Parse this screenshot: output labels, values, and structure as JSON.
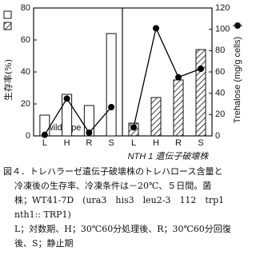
{
  "chart_data": [
    {
      "type": "bar",
      "title": "wild type",
      "ylabel": "生存率(%)",
      "categories": [
        "L",
        "H",
        "R",
        "S"
      ],
      "ylim": [
        0,
        80
      ],
      "yticks": [
        0,
        20,
        40,
        60,
        80
      ],
      "series": [
        {
          "type": "bar",
          "color": "#ffffff",
          "hatch": false,
          "values": [
            13,
            26,
            19,
            64
          ]
        },
        {
          "type": "line",
          "axis": "y2",
          "color": "#000000",
          "values": [
            1,
            35,
            3,
            27
          ]
        }
      ]
    },
    {
      "type": "bar",
      "title": "NTH 1 遺伝子破壊株",
      "y2label": "Trehalose (mg/g cells)",
      "categories": [
        "L",
        "H",
        "R",
        "S"
      ],
      "y2lim": [
        0,
        120
      ],
      "y2ticks": [
        0,
        20,
        40,
        60,
        80,
        100,
        120
      ],
      "series": [
        {
          "type": "bar",
          "color": "#ffffff",
          "hatch": true,
          "values": [
            8,
            24,
            35,
            54
          ]
        },
        {
          "type": "line",
          "axis": "y2",
          "color": "#000000",
          "values": [
            8,
            101,
            55,
            63
          ]
        }
      ]
    }
  ],
  "caption": [
    "図４．トレハラーゼ遺伝子破壊株のトレハロース含量と",
    "冷凍後の生存率、冷凍条件は－20℃、５日間。菌",
    "株；WT41-7D　(ura3　his3　leu2-3　112　trp1",
    "nth1:: TRP1)",
    "L；対数期、H；30℃60分処理後、R；30℃60分回復",
    "後、S；静止期"
  ]
}
